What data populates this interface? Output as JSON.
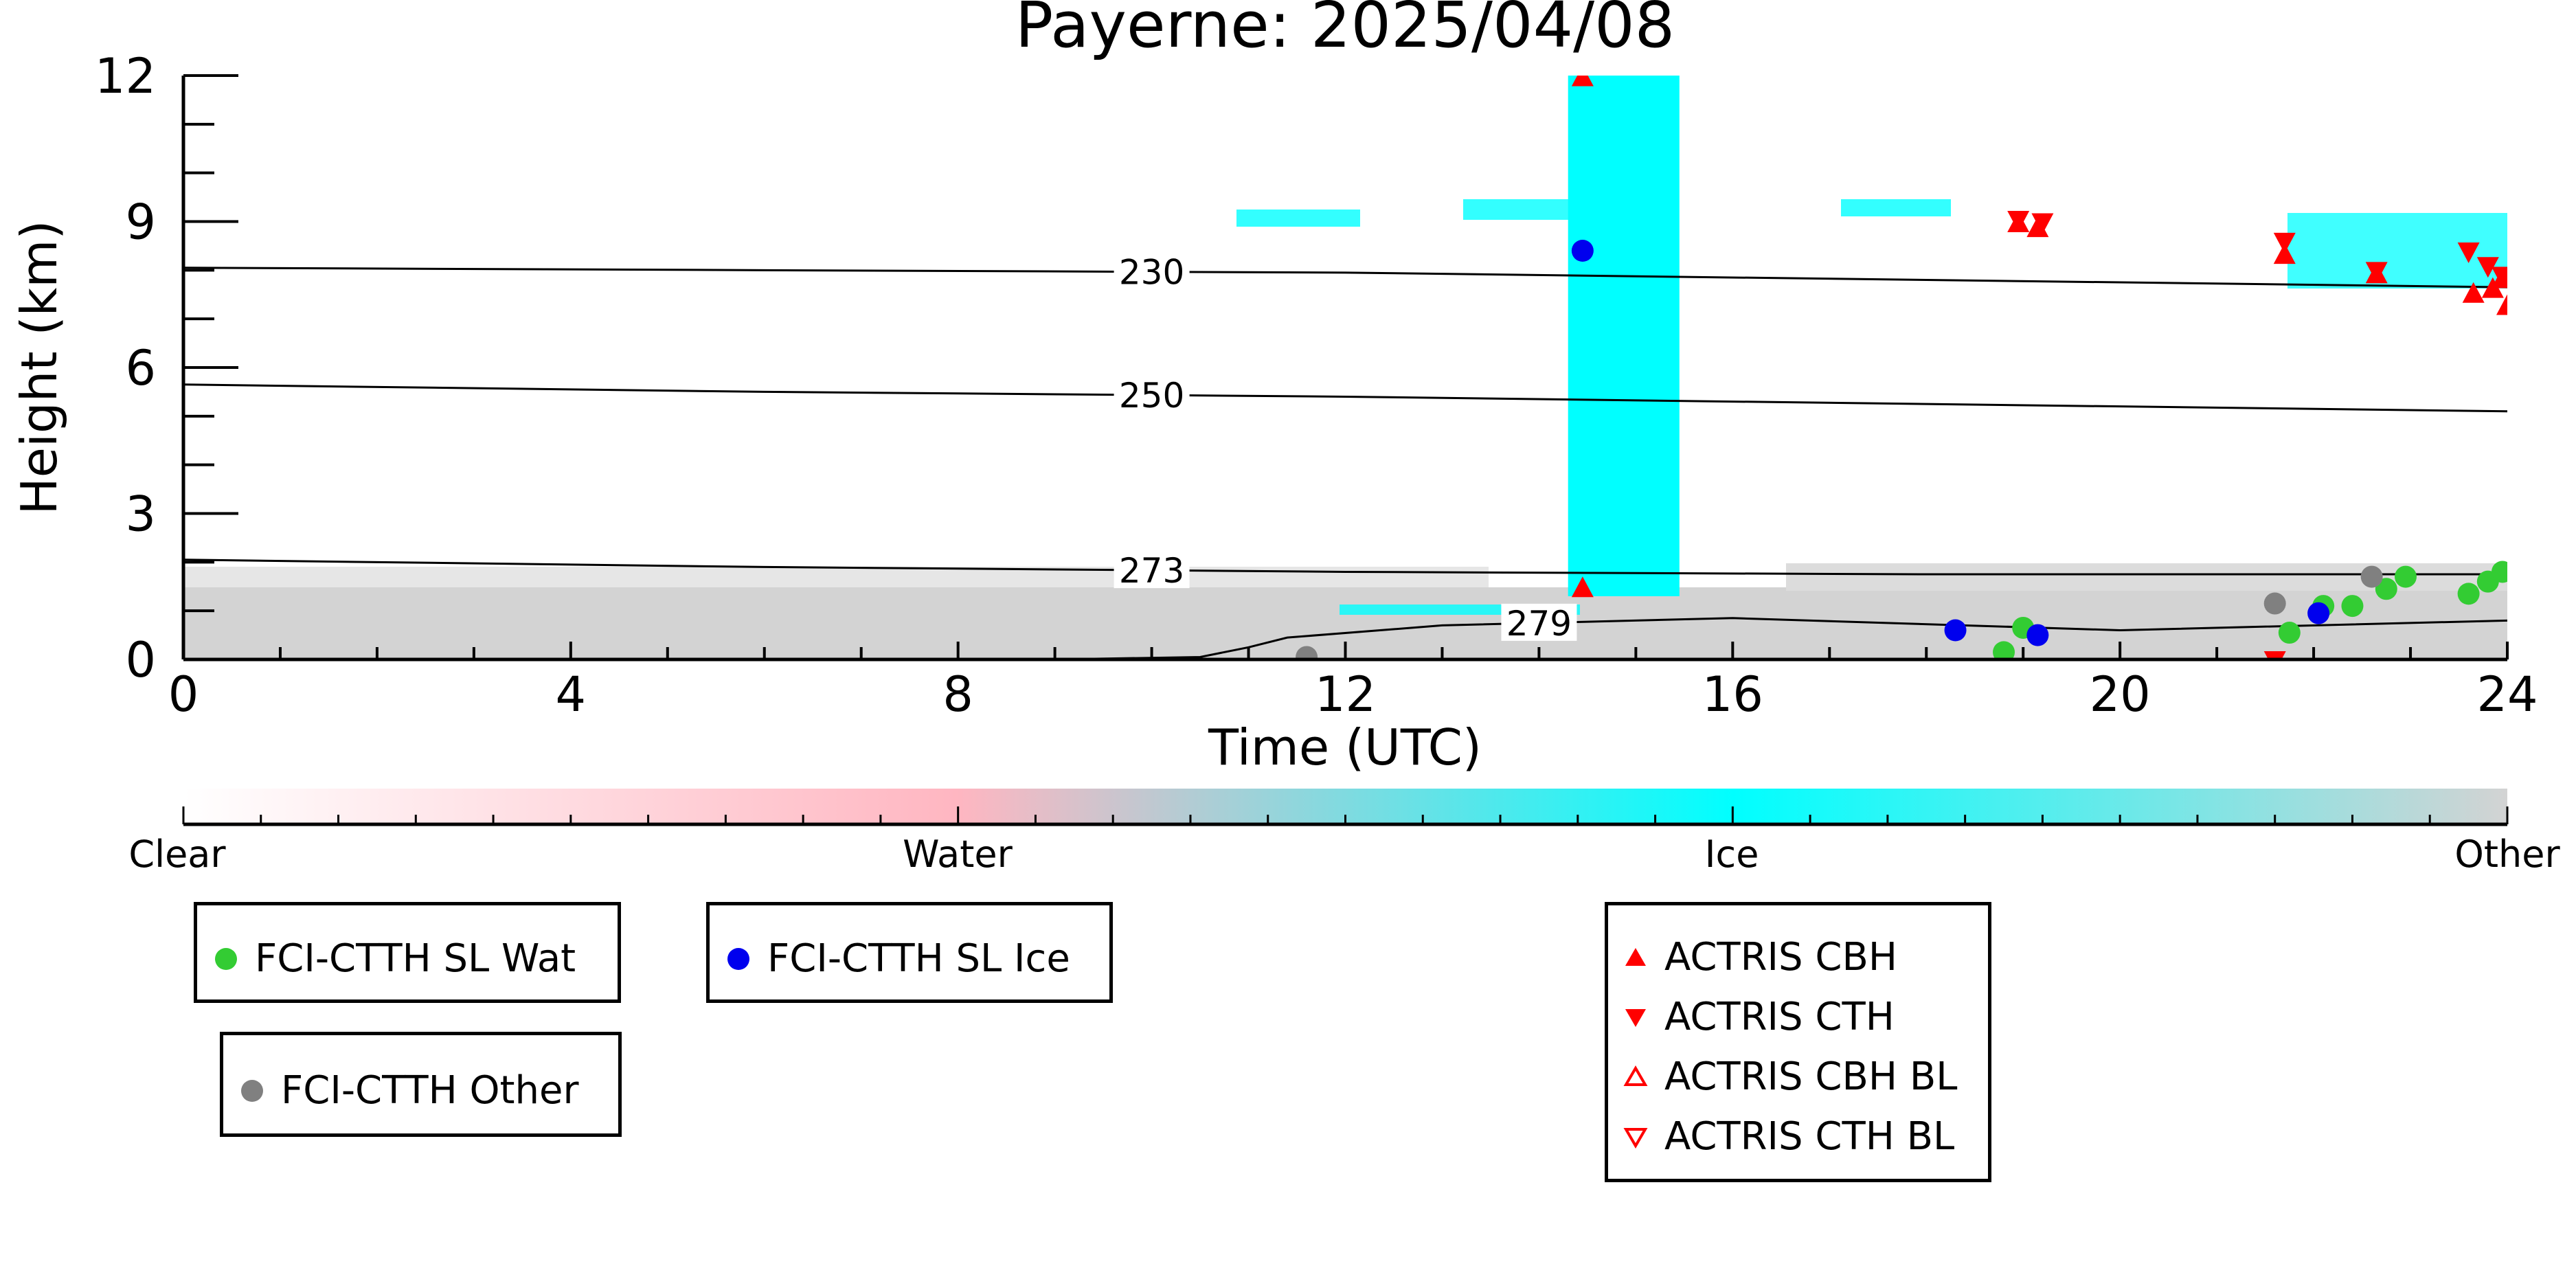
{
  "chart_data": {
    "type": "scatter",
    "title": "Payerne: 2025/04/08",
    "xlabel": "Time (UTC)",
    "ylabel": "Height (km)",
    "xlim": [
      0,
      24
    ],
    "ylim": [
      0,
      12
    ],
    "x_ticks": [
      "0",
      "4",
      "8",
      "12",
      "16",
      "20",
      "24"
    ],
    "x_tick_values": [
      0,
      4,
      8,
      12,
      16,
      20,
      24
    ],
    "y_ticks": [
      "0",
      "3",
      "6",
      "9",
      "12"
    ],
    "y_tick_values": [
      0,
      3,
      6,
      9,
      12
    ],
    "colorbar": {
      "labels": [
        "Clear",
        "Water",
        "Ice",
        "Other"
      ],
      "colors": [
        "#ffffff",
        "#ffb6c1",
        "#00ffff",
        "#d3d3d3"
      ]
    },
    "temperature_contours": [
      {
        "label": "230",
        "label_x": 10.0,
        "points": [
          [
            0,
            8.05
          ],
          [
            6,
            8.0
          ],
          [
            12,
            7.95
          ],
          [
            18,
            7.8
          ],
          [
            24,
            7.65
          ]
        ]
      },
      {
        "label": "250",
        "label_x": 10.0,
        "points": [
          [
            0,
            5.65
          ],
          [
            6,
            5.5
          ],
          [
            12,
            5.4
          ],
          [
            18,
            5.25
          ],
          [
            24,
            5.1
          ]
        ]
      },
      {
        "label": "273",
        "label_x": 10.0,
        "points": [
          [
            0,
            2.05
          ],
          [
            6,
            1.9
          ],
          [
            12,
            1.8
          ],
          [
            18,
            1.75
          ],
          [
            24,
            1.75
          ]
        ]
      },
      {
        "label": "279",
        "label_x": 14.0,
        "points": [
          [
            9.0,
            0.0
          ],
          [
            10.5,
            0.05
          ],
          [
            11.0,
            0.25
          ],
          [
            11.4,
            0.45
          ],
          [
            13.0,
            0.7
          ],
          [
            16.0,
            0.85
          ],
          [
            20.0,
            0.6
          ],
          [
            24.0,
            0.8
          ]
        ]
      }
    ],
    "ice_band": {
      "x_start": 14.3,
      "x_end": 15.45,
      "y_start": 1.3,
      "y_end": 12.0
    },
    "series": [
      {
        "name": "FCI-CTTH SL Wat",
        "color": "#33cc33",
        "marker": "circle",
        "x": [
          18.8,
          19.0,
          21.75,
          22.1,
          22.4,
          22.75,
          22.95,
          23.6,
          23.8,
          23.95
        ],
        "y": [
          0.15,
          0.65,
          0.55,
          1.1,
          1.1,
          1.45,
          1.7,
          1.35,
          1.6,
          1.8
        ]
      },
      {
        "name": "FCI-CTTH SL Ice",
        "color": "#0000ee",
        "marker": "circle",
        "x": [
          14.45,
          18.3,
          19.15,
          22.05
        ],
        "y": [
          8.4,
          0.6,
          0.5,
          0.95
        ]
      },
      {
        "name": "FCI-CTTH Other",
        "color": "#808080",
        "marker": "circle",
        "x": [
          11.6,
          21.6,
          22.6
        ],
        "y": [
          0.05,
          1.15,
          1.7
        ]
      },
      {
        "name": "ACTRIS CBH",
        "color": "#ff0000",
        "marker": "triangle-up",
        "x": [
          14.45,
          14.45,
          18.95,
          19.15,
          21.7,
          22.65,
          23.65,
          23.85,
          24.0,
          23.95
        ],
        "y": [
          1.45,
          11.95,
          8.95,
          8.85,
          8.3,
          7.9,
          7.5,
          7.6,
          7.25,
          7.8
        ]
      },
      {
        "name": "ACTRIS CTH",
        "color": "#ff0000",
        "marker": "triangle-down",
        "x": [
          18.95,
          19.2,
          21.7,
          22.65,
          23.6,
          23.8,
          23.95,
          21.6
        ],
        "y": [
          9.05,
          9.0,
          8.6,
          8.0,
          8.4,
          8.1,
          7.9,
          0.0
        ]
      },
      {
        "name": "ACTRIS CBH BL",
        "color": "#ff0000",
        "marker": "triangle-up-open",
        "x": [],
        "y": []
      },
      {
        "name": "ACTRIS CTH BL",
        "color": "#ff0000",
        "marker": "triangle-down-open",
        "x": [],
        "y": []
      }
    ]
  }
}
